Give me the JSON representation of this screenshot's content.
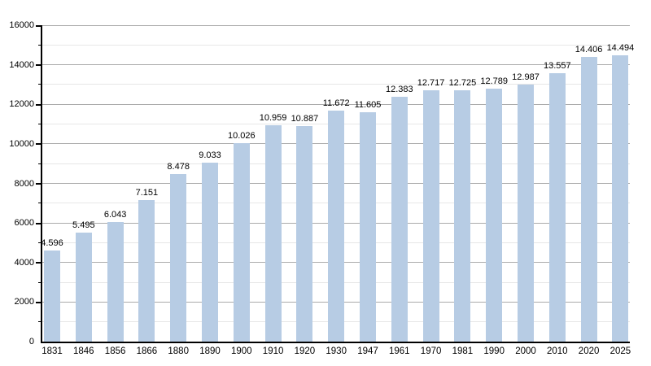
{
  "chart_data": {
    "type": "bar",
    "title": "",
    "xlabel": "",
    "ylabel": "",
    "categories": [
      "1831",
      "1846",
      "1856",
      "1866",
      "1880",
      "1890",
      "1900",
      "1910",
      "1920",
      "1930",
      "1947",
      "1961",
      "1970",
      "1981",
      "1990",
      "2000",
      "2010",
      "2020",
      "2025"
    ],
    "values": [
      4596,
      5495,
      6043,
      7151,
      8478,
      9033,
      10026,
      10959,
      10887,
      11672,
      11605,
      12383,
      12717,
      12725,
      12789,
      12987,
      13557,
      14406,
      14494
    ],
    "bar_labels": [
      "4.596",
      "5.495",
      "6.043",
      "7.151",
      "8.478",
      "9.033",
      "10.026",
      "10.959",
      "10.887",
      "11.672",
      "11.605",
      "12.383",
      "12.717",
      "12.725",
      "12.789",
      "12.987",
      "13.557",
      "14.406",
      "14.494"
    ],
    "ylim": [
      0,
      16000
    ],
    "y_major_step": 2000,
    "y_minor_step": 1000,
    "y_tick_labels": [
      "0",
      "2000",
      "4000",
      "6000",
      "8000",
      "10000",
      "12000",
      "14000",
      "16000"
    ],
    "grid": true,
    "legend": null,
    "colors": {
      "bar_fill": "#b7cce4",
      "major_grid": "#ababab",
      "minor_grid": "#e7e7e7",
      "axis": "#000000",
      "label_text": "#000000",
      "background": "#ffffff"
    }
  }
}
